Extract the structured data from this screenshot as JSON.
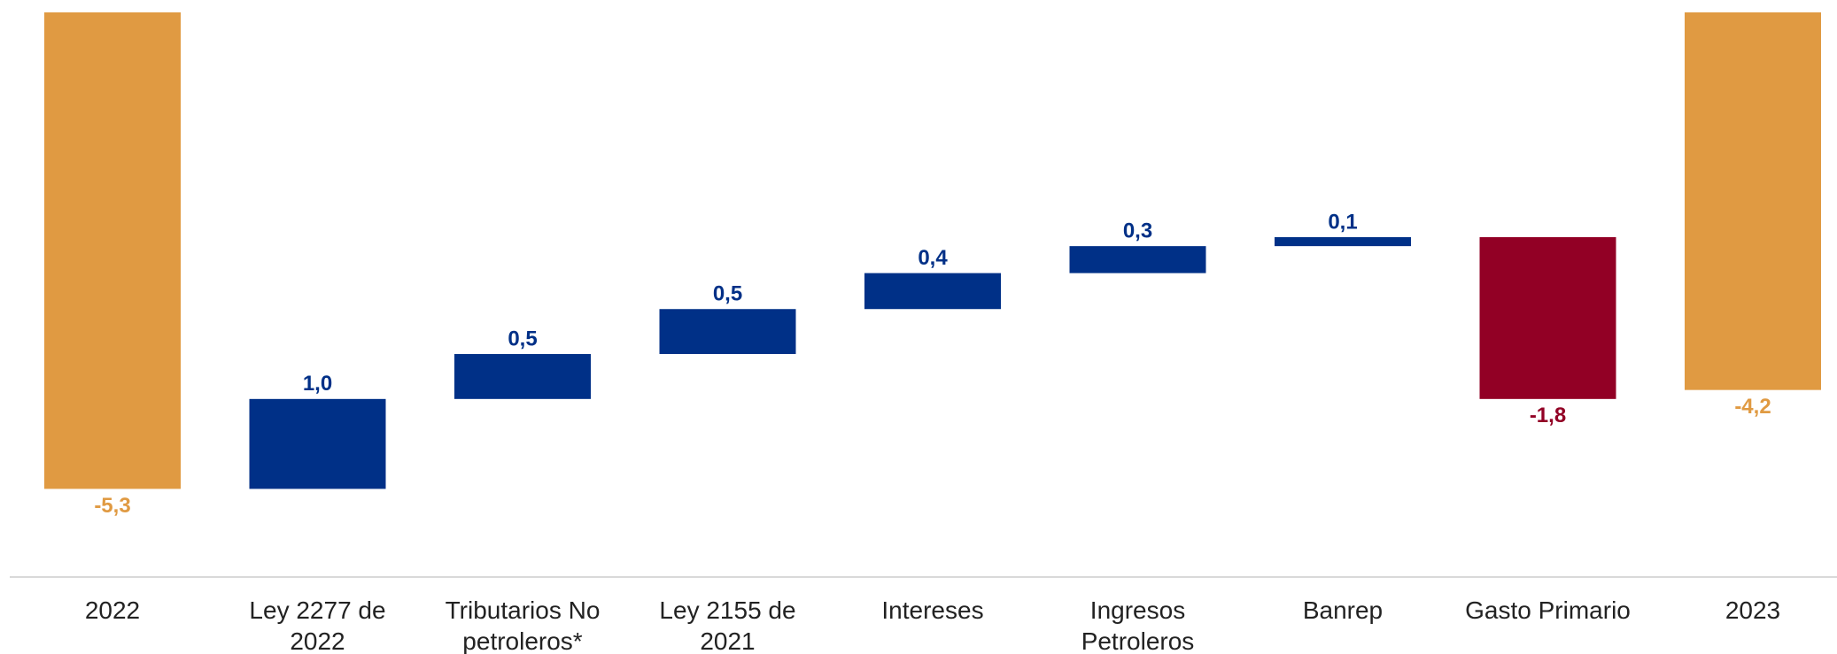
{
  "chart_data": {
    "type": "waterfall",
    "categories": [
      "2022",
      "Ley 2277 de 2022",
      "Tributarios No petroleros*",
      "Ley 2155 de 2021",
      "Intereses",
      "Ingresos Petroleros",
      "Banrep",
      "Gasto Primario",
      "2023"
    ],
    "values": [
      -5.3,
      1.0,
      0.5,
      0.5,
      0.4,
      0.3,
      0.1,
      -1.8,
      -4.2
    ],
    "value_labels": [
      "-5,3",
      "1,0",
      "0,5",
      "0,5",
      "0,4",
      "0,3",
      "0,1",
      "-1,8",
      "-4,2"
    ],
    "measure": [
      "total",
      "relative",
      "relative",
      "relative",
      "relative",
      "relative",
      "relative",
      "relative",
      "total"
    ],
    "colors": [
      "#e09a42",
      "#003087",
      "#003087",
      "#003087",
      "#003087",
      "#003087",
      "#003087",
      "#920025",
      "#e09a42"
    ],
    "ylim": [
      -6.3,
      0
    ]
  }
}
